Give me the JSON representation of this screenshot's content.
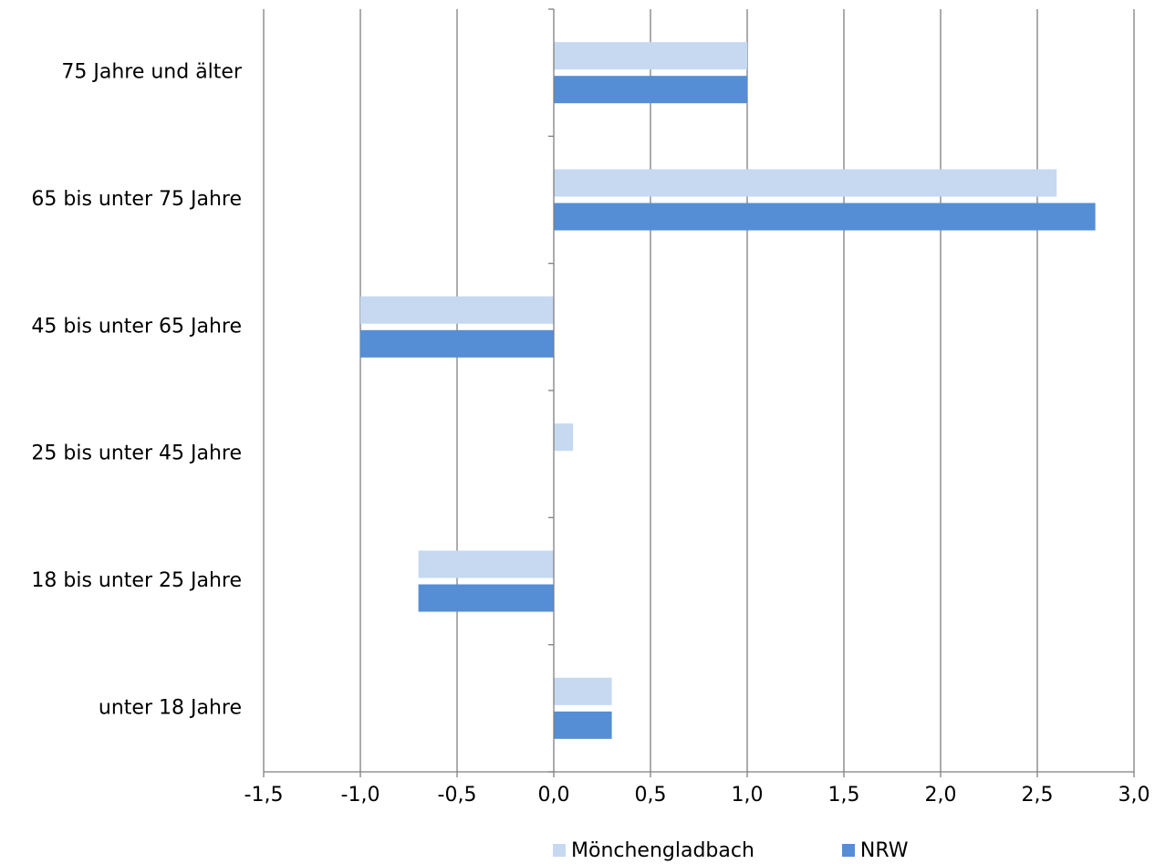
{
  "chart_data": {
    "type": "bar",
    "orientation": "horizontal",
    "categories": [
      "75 Jahre und älter",
      "65 bis unter 75 Jahre",
      "45 bis unter 65 Jahre",
      "25 bis unter 45 Jahre",
      "18 bis unter 25 Jahre",
      "unter 18 Jahre"
    ],
    "series": [
      {
        "name": "Mönchengladbach",
        "color": "#c6d9f1",
        "values": [
          1.0,
          2.6,
          -1.0,
          0.1,
          -0.7,
          0.3
        ]
      },
      {
        "name": "NRW",
        "color": "#558ed5",
        "values": [
          1.0,
          2.8,
          -1.0,
          0.0,
          -0.7,
          0.3
        ]
      }
    ],
    "xlim": [
      -1.5,
      3.0
    ],
    "xticks": [
      -1.5,
      -1.0,
      -0.5,
      0.0,
      0.5,
      1.0,
      1.5,
      2.0,
      2.5,
      3.0
    ],
    "xtick_labels": [
      "-1,5",
      "-1,0",
      "-0,5",
      "0,0",
      "0,5",
      "1,0",
      "1,5",
      "2,0",
      "2,5",
      "3,0"
    ],
    "grid": "vertical",
    "legend_position": "bottom"
  }
}
